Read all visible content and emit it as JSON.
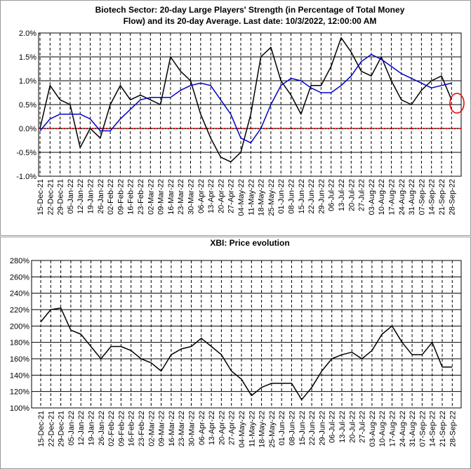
{
  "chart_data": [
    {
      "type": "line",
      "title": [
        "Biotech Sector: 20-day Large Players' Strength (in Percentage of Total Money",
        "Flow) and its 20-day Average. Last date: 10/3/2022, 12:00:00 AM"
      ],
      "categories": [
        "15-Dec-21",
        "22-Dec-21",
        "29-Dec-21",
        "05-Jan-22",
        "12-Jan-22",
        "19-Jan-22",
        "26-Jan-22",
        "02-Feb-22",
        "09-Feb-22",
        "16-Feb-22",
        "23-Feb-22",
        "02-Mar-22",
        "09-Mar-22",
        "16-Mar-22",
        "23-Mar-22",
        "30-Mar-22",
        "06-Apr-22",
        "13-Apr-22",
        "20-Apr-22",
        "27-Apr-22",
        "04-May-22",
        "11-May-22",
        "18-May-22",
        "25-May-22",
        "01-Jun-22",
        "08-Jun-22",
        "15-Jun-22",
        "22-Jun-22",
        "29-Jun-22",
        "06-Jul-22",
        "13-Jul-22",
        "20-Jul-22",
        "27-Jul-22",
        "03-Aug-22",
        "10-Aug-22",
        "17-Aug-22",
        "24-Aug-22",
        "31-Aug-22",
        "07-Sep-22",
        "14-Sep-22",
        "21-Sep-22",
        "28-Sep-22"
      ],
      "series": [
        {
          "color": "#000000",
          "values": [
            0.0,
            0.9,
            0.6,
            0.5,
            -0.4,
            0.0,
            -0.2,
            0.5,
            0.9,
            0.6,
            0.7,
            0.6,
            0.5,
            1.5,
            1.2,
            1.0,
            0.3,
            -0.2,
            -0.6,
            -0.7,
            -0.5,
            0.3,
            1.5,
            1.7,
            1.0,
            0.7,
            0.3,
            0.9,
            0.9,
            1.3,
            1.9,
            1.6,
            1.2,
            1.1,
            1.5,
            1.0,
            0.6,
            0.5,
            0.8,
            1.0,
            1.1,
            0.6
          ]
        },
        {
          "color": "#0000cc",
          "values": [
            -0.05,
            0.2,
            0.3,
            0.3,
            0.3,
            0.2,
            -0.05,
            -0.05,
            0.2,
            0.4,
            0.6,
            0.65,
            0.65,
            0.65,
            0.8,
            0.9,
            0.95,
            0.9,
            0.6,
            0.3,
            -0.2,
            -0.3,
            0.0,
            0.5,
            0.9,
            1.05,
            1.0,
            0.85,
            0.75,
            0.75,
            0.9,
            1.1,
            1.4,
            1.55,
            1.45,
            1.3,
            1.15,
            1.05,
            0.95,
            0.85,
            0.9,
            0.95
          ]
        }
      ],
      "ylim": [
        -1.0,
        2.0
      ],
      "yticks": [
        {
          "value": -1.0,
          "label": "-1.0%"
        },
        {
          "value": -0.5,
          "label": "-0.5%"
        },
        {
          "value": 0.0,
          "label": "0.0%"
        },
        {
          "value": 0.5,
          "label": "0.5%"
        },
        {
          "value": 1.0,
          "label": "1.0%"
        },
        {
          "value": 1.5,
          "label": "1.5%"
        },
        {
          "value": 2.0,
          "label": "2.0%"
        }
      ],
      "grid": true,
      "zero_line_color": "#cc0000"
    },
    {
      "type": "line",
      "title": [
        "XBI: Price evolution"
      ],
      "categories": [
        "15-Dec-21",
        "22-Dec-21",
        "29-Dec-21",
        "05-Jan-22",
        "12-Jan-22",
        "19-Jan-22",
        "26-Jan-22",
        "02-Feb-22",
        "09-Feb-22",
        "16-Feb-22",
        "23-Feb-22",
        "02-Mar-22",
        "09-Mar-22",
        "16-Mar-22",
        "23-Mar-22",
        "30-Mar-22",
        "06-Apr-22",
        "13-Apr-22",
        "20-Apr-22",
        "27-Apr-22",
        "04-May-22",
        "11-May-22",
        "18-May-22",
        "25-May-22",
        "01-Jun-22",
        "08-Jun-22",
        "15-Jun-22",
        "22-Jun-22",
        "29-Jun-22",
        "06-Jul-22",
        "13-Jul-22",
        "20-Jul-22",
        "27-Jul-22",
        "03-Aug-22",
        "10-Aug-22",
        "17-Aug-22",
        "24-Aug-22",
        "31-Aug-22",
        "07-Sep-22",
        "14-Sep-22",
        "21-Sep-22",
        "28-Sep-22"
      ],
      "series": [
        {
          "color": "#000000",
          "values": [
            205,
            220,
            222,
            195,
            190,
            175,
            160,
            175,
            175,
            170,
            160,
            155,
            145,
            165,
            172,
            175,
            185,
            175,
            165,
            145,
            135,
            115,
            125,
            130,
            130,
            130,
            110,
            125,
            145,
            160,
            165,
            168,
            160,
            170,
            190,
            200,
            180,
            165,
            165,
            180,
            150,
            150
          ]
        }
      ],
      "ylim": [
        100,
        280
      ],
      "yticks": [
        {
          "value": 100,
          "label": "100%"
        },
        {
          "value": 120,
          "label": "120%"
        },
        {
          "value": 140,
          "label": "140%"
        },
        {
          "value": 160,
          "label": "160%"
        },
        {
          "value": 180,
          "label": "180%"
        },
        {
          "value": 200,
          "label": "200%"
        },
        {
          "value": 220,
          "label": "220%"
        },
        {
          "value": 240,
          "label": "240%"
        },
        {
          "value": 260,
          "label": "260%"
        },
        {
          "value": 280,
          "label": "280%"
        }
      ],
      "grid": true
    }
  ]
}
